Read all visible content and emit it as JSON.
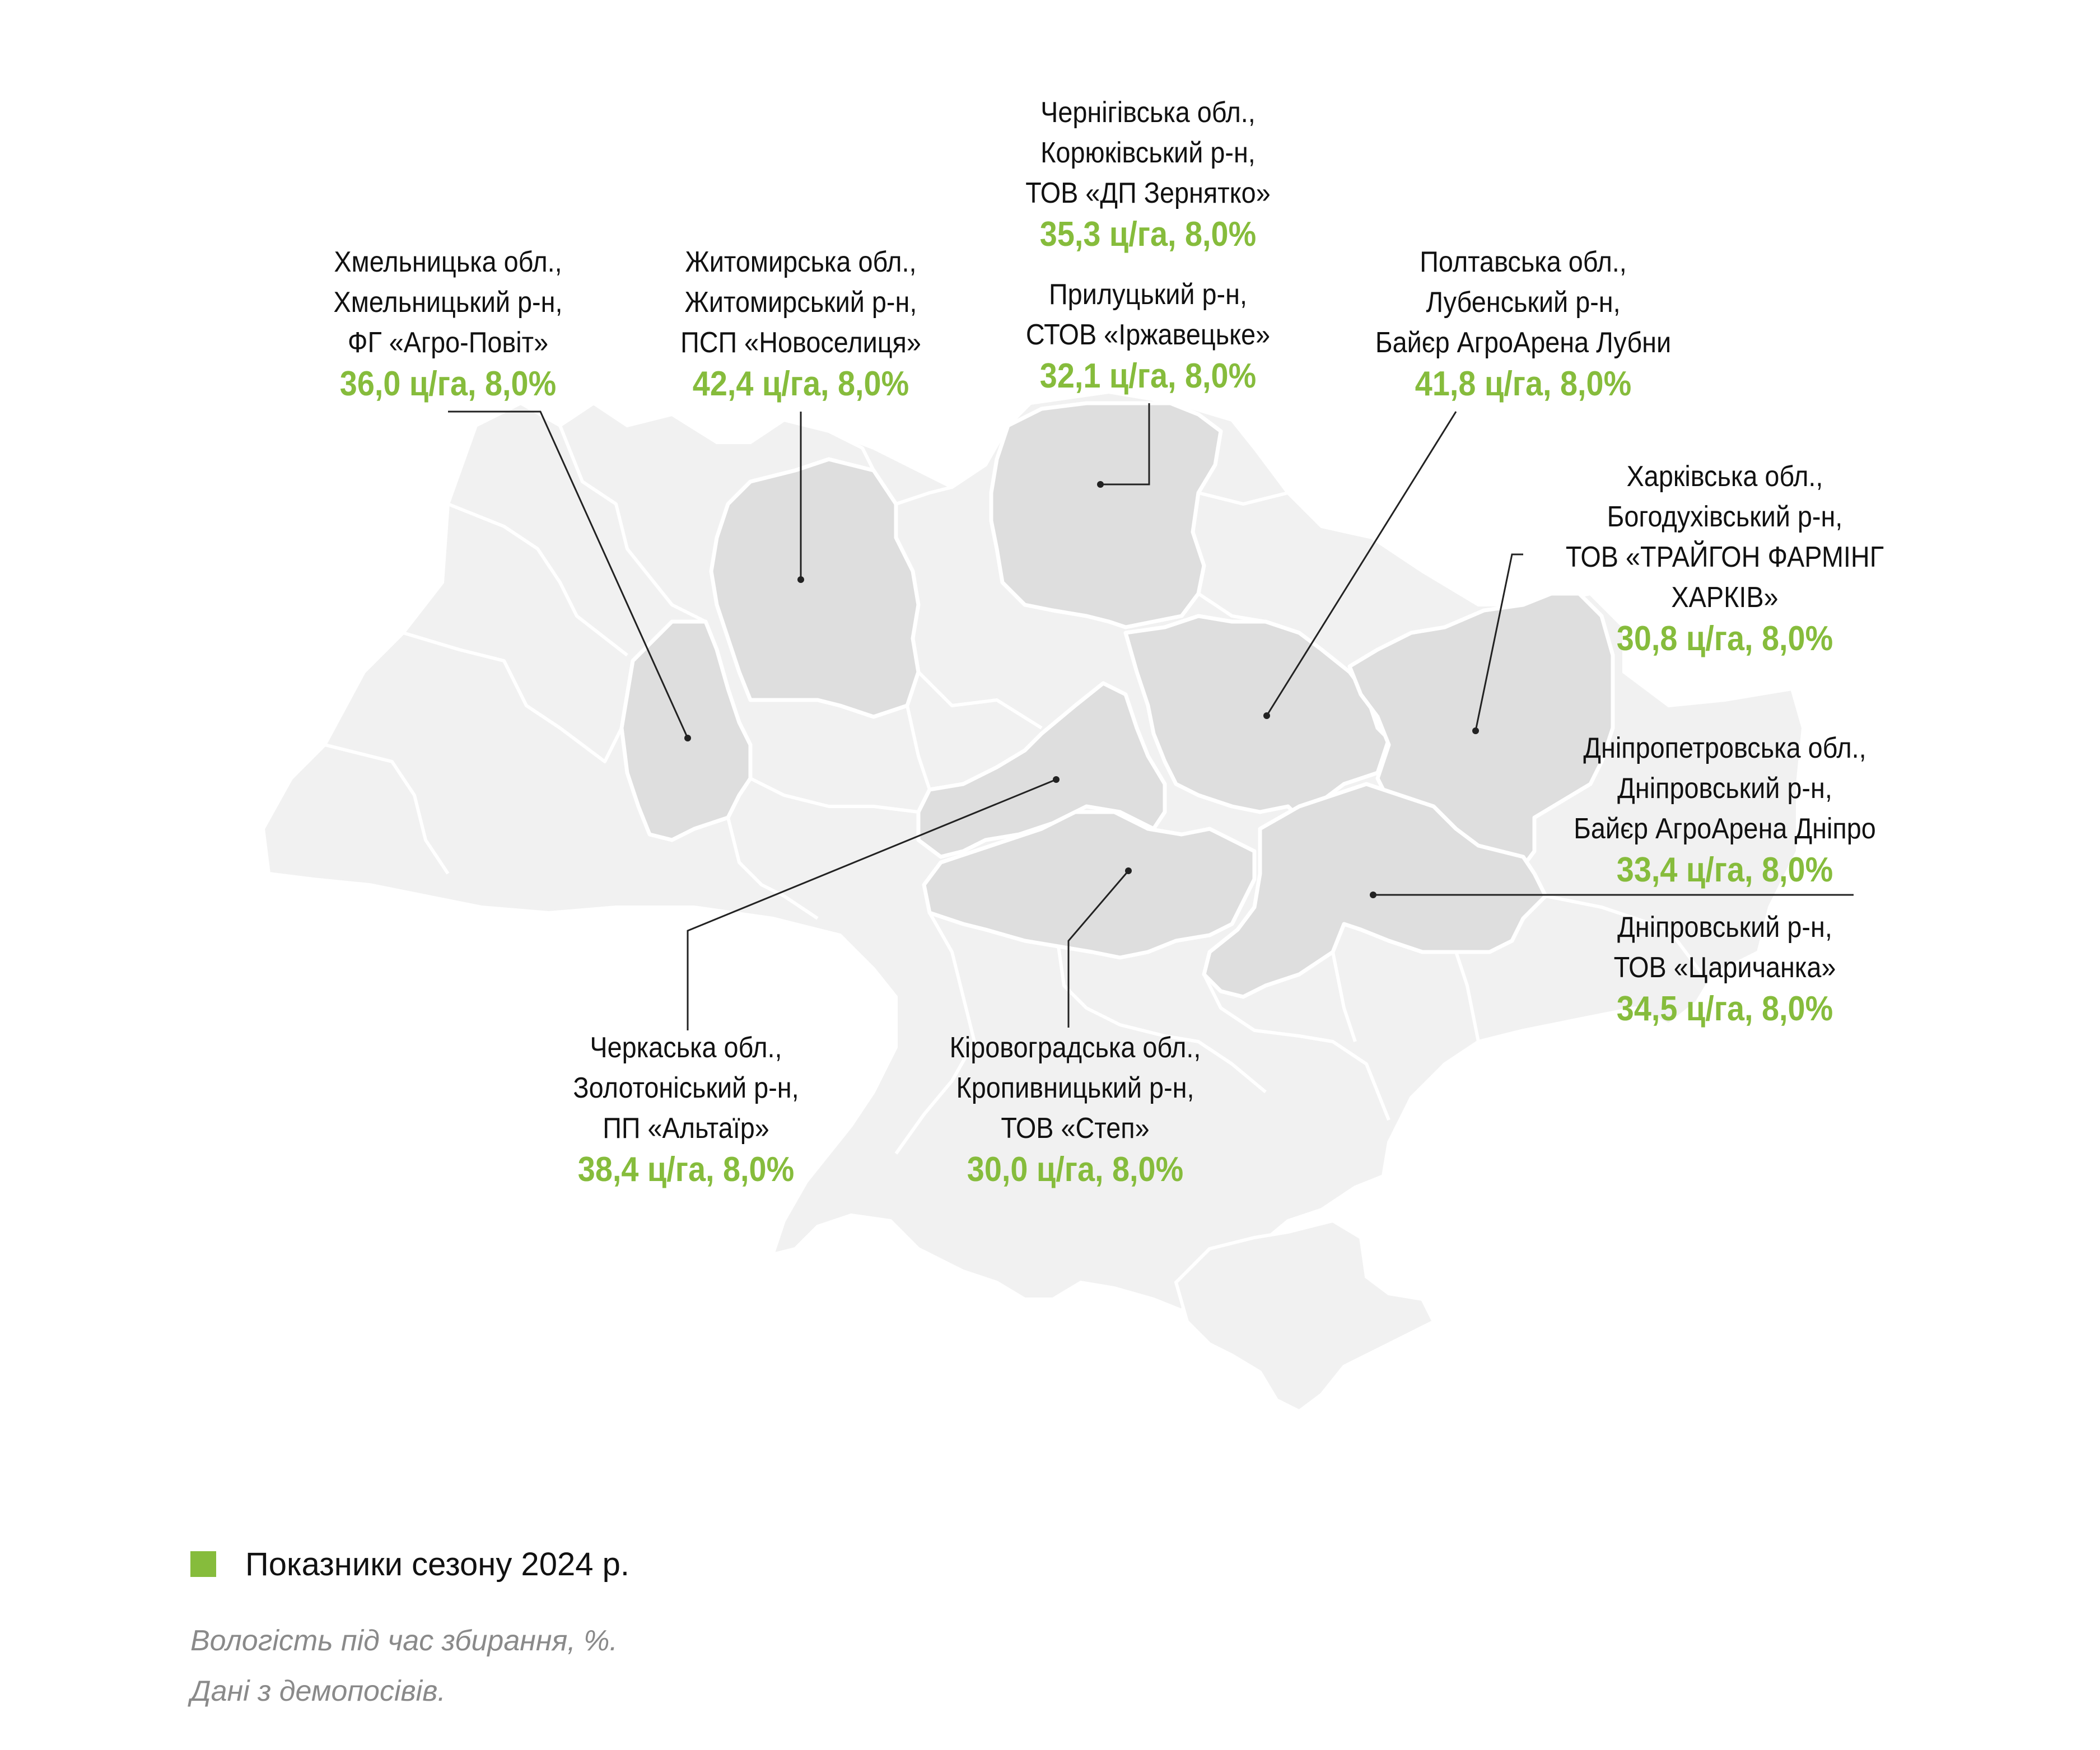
{
  "colors": {
    "accent": "#86bc3c",
    "map_base": "#f1f1f1",
    "map_highlight": "#dedede",
    "leader": "#222222"
  },
  "annotations": [
    {
      "id": "khmelnytskyi",
      "lines": [
        "Хмельницька обл.,",
        "Хмельницький р-н,",
        "ФГ «Агро-Повіт»"
      ],
      "value": "36,0 ц/га, 8,0%"
    },
    {
      "id": "zhytomyr",
      "lines": [
        "Житомирська обл.,",
        "Житомирський р-н,",
        "ПСП «Новоселиця»"
      ],
      "value": "42,4 ц/га, 8,0%"
    },
    {
      "id": "chernihiv-koriukivka",
      "lines": [
        "Чернігівська обл.,",
        "Корюківський р-н,",
        "ТОВ «ДП Зернятко»"
      ],
      "value": "35,3 ц/га, 8,0%"
    },
    {
      "id": "chernihiv-pryluky",
      "lines": [
        "Прилуцький р-н,",
        "СТОВ «Іржавецьке»"
      ],
      "value": "32,1 ц/га, 8,0%"
    },
    {
      "id": "poltava",
      "lines": [
        "Полтавська обл.,",
        "Лубенський р-н,",
        "Байєр АгроАрена Лубни"
      ],
      "value": "41,8 ц/га, 8,0%"
    },
    {
      "id": "kharkiv",
      "lines": [
        "Харківська обл.,",
        "Богодухівський р-н,",
        "ТОВ «ТРАЙГОН ФАРМІНГ",
        "ХАРКІВ»"
      ],
      "value": "30,8 ц/га, 8,0%"
    },
    {
      "id": "dnipro-arena",
      "lines": [
        "Дніпропетровська обл.,",
        "Дніпровський р-н,",
        "Байєр АгроАрена Дніпро"
      ],
      "value": "33,4 ц/га, 8,0%"
    },
    {
      "id": "dnipro-tsarychanka",
      "lines": [
        "Дніпровський р-н,",
        "ТОВ «Царичанка»"
      ],
      "value": "34,5 ц/га, 8,0%"
    },
    {
      "id": "cherkasy",
      "lines": [
        "Черкаська обл.,",
        "Золотоніський р-н,",
        "ПП «Альтаїр»"
      ],
      "value": "38,4 ц/га, 8,0%"
    },
    {
      "id": "kirovohrad",
      "lines": [
        "Кіровоградська обл.,",
        "Кропивницький р-н,",
        "ТОВ «Степ»"
      ],
      "value": "30,0 ц/га, 8,0%"
    }
  ],
  "legend": {
    "label": "Показники сезону 2024 р."
  },
  "notes": {
    "moisture": "Вологість під час збирання, %.",
    "source": "Дані з демопосівів."
  }
}
